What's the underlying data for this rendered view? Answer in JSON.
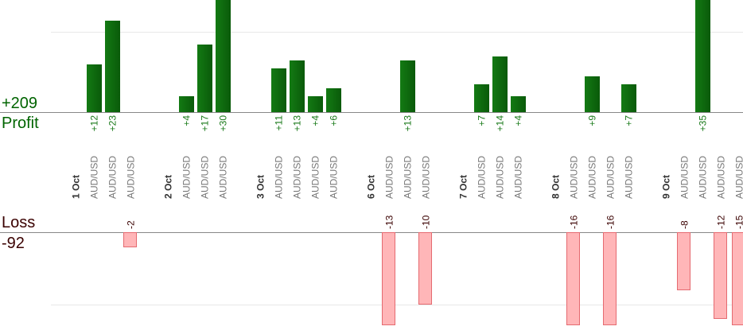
{
  "summary": {
    "profit_total": "+209",
    "profit_label": "Profit",
    "loss_label": "Loss",
    "loss_total": "-92"
  },
  "colors": {
    "profit_bar_dark": "#0a5a0a",
    "profit_bar_light": "#137a13",
    "profit_text": "#1a7a1a",
    "loss_bar_fill": "#ffb6b8",
    "loss_bar_stroke": "#e56a70",
    "loss_text": "#3a0000",
    "axis": "#888888",
    "grid": "#e8e8e8",
    "day_label": "#333333",
    "pair_label": "#777777"
  },
  "chart_data": {
    "type": "bar",
    "title": "",
    "ylabel": "",
    "days": [
      {
        "label": "1 Oct",
        "trades": [
          {
            "pair": "AUD/USD",
            "value": 12
          },
          {
            "pair": "AUD/USD",
            "value": 23
          },
          {
            "pair": "AUD/USD",
            "value": -2
          }
        ]
      },
      {
        "label": "2 Oct",
        "trades": [
          {
            "pair": "AUD/USD",
            "value": 4
          },
          {
            "pair": "AUD/USD",
            "value": 17
          },
          {
            "pair": "AUD/USD",
            "value": 30
          }
        ]
      },
      {
        "label": "3 Oct",
        "trades": [
          {
            "pair": "AUD/USD",
            "value": 11
          },
          {
            "pair": "AUD/USD",
            "value": 13
          },
          {
            "pair": "AUD/USD",
            "value": 4
          },
          {
            "pair": "AUD/USD",
            "value": 6
          }
        ]
      },
      {
        "label": "6 Oct",
        "trades": [
          {
            "pair": "AUD/USD",
            "value": -13
          },
          {
            "pair": "AUD/USD",
            "value": 13
          },
          {
            "pair": "AUD/USD",
            "value": -10
          }
        ]
      },
      {
        "label": "7 Oct",
        "trades": [
          {
            "pair": "AUD/USD",
            "value": 7
          },
          {
            "pair": "AUD/USD",
            "value": 14
          },
          {
            "pair": "AUD/USD",
            "value": 4
          }
        ]
      },
      {
        "label": "8 Oct",
        "trades": [
          {
            "pair": "AUD/USD",
            "value": -16
          },
          {
            "pair": "AUD/USD",
            "value": 9
          },
          {
            "pair": "AUD/USD",
            "value": -16
          },
          {
            "pair": "AUD/USD",
            "value": 7
          }
        ]
      },
      {
        "label": "9 Oct",
        "trades": [
          {
            "pair": "AUD/USD",
            "value": -8
          },
          {
            "pair": "AUD/USD",
            "value": 35
          },
          {
            "pair": "AUD/USD",
            "value": -12
          },
          {
            "pair": "AUD/USD",
            "value": -15
          }
        ]
      }
    ]
  }
}
